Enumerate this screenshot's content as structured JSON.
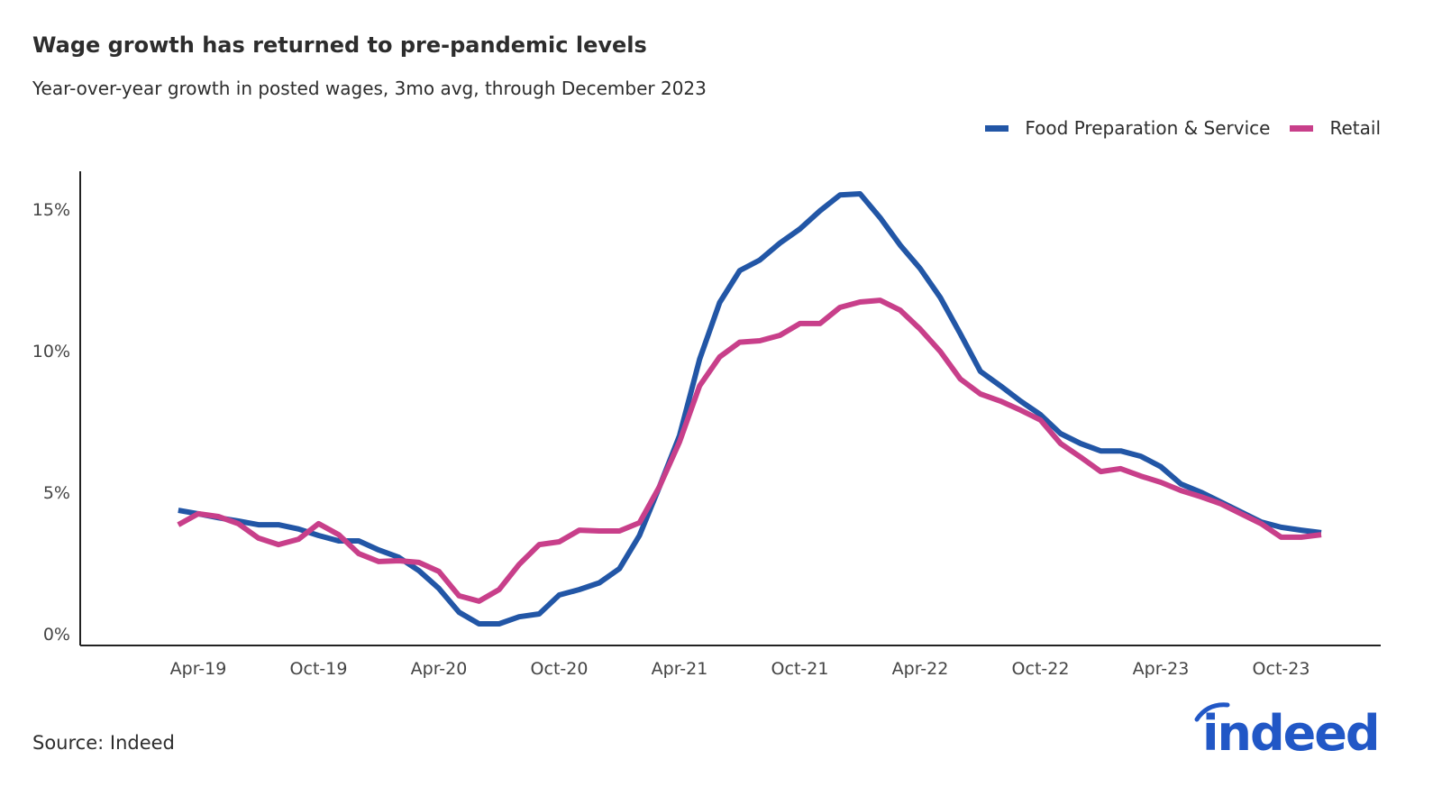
{
  "title": "Wage growth has returned to pre-pandemic levels",
  "subtitle": "Year-over-year growth in posted wages, 3mo avg, through December 2023",
  "source": "Source: Indeed",
  "logo_text": "indeed",
  "colors": {
    "food": "#2256a6",
    "retail": "#c83f8a",
    "logo": "#2157c6"
  },
  "chart_data": {
    "type": "line",
    "title": "Wage growth has returned to pre-pandemic levels",
    "subtitle": "Year-over-year growth in posted wages, 3mo avg, through December 2023",
    "xlabel": "",
    "ylabel": "",
    "ylim": [
      -0.4,
      16.5
    ],
    "y_ticks": [
      0,
      5,
      10,
      15
    ],
    "y_tick_labels": [
      "0%",
      "5%",
      "10%",
      "15%"
    ],
    "x_tick_labels": [
      "Apr-19",
      "Oct-19",
      "Apr-20",
      "Oct-20",
      "Apr-21",
      "Oct-21",
      "Apr-22",
      "Oct-22",
      "Apr-23",
      "Oct-23"
    ],
    "x_tick_positions": [
      "2019-04",
      "2019-10",
      "2020-04",
      "2020-10",
      "2021-04",
      "2021-10",
      "2022-04",
      "2022-10",
      "2023-04",
      "2023-10"
    ],
    "x_range": [
      "2018-11",
      "2024-05"
    ],
    "grid": false,
    "legend_position": "top-right",
    "x": [
      "2019-03",
      "2019-04",
      "2019-05",
      "2019-06",
      "2019-07",
      "2019-08",
      "2019-09",
      "2019-10",
      "2019-11",
      "2019-12",
      "2020-01",
      "2020-02",
      "2020-03",
      "2020-04",
      "2020-05",
      "2020-06",
      "2020-07",
      "2020-08",
      "2020-09",
      "2020-10",
      "2020-11",
      "2020-12",
      "2021-01",
      "2021-02",
      "2021-03",
      "2021-04",
      "2021-05",
      "2021-06",
      "2021-07",
      "2021-08",
      "2021-09",
      "2021-10",
      "2021-11",
      "2021-12",
      "2022-01",
      "2022-02",
      "2022-03",
      "2022-04",
      "2022-05",
      "2022-06",
      "2022-07",
      "2022-08",
      "2022-09",
      "2022-10",
      "2022-11",
      "2022-12",
      "2023-01",
      "2023-02",
      "2023-03",
      "2023-04",
      "2023-05",
      "2023-06",
      "2023-07",
      "2023-08",
      "2023-09",
      "2023-10",
      "2023-11",
      "2023-12"
    ],
    "series": [
      {
        "name": "Food Preparation & Service",
        "color": "#2256a6",
        "values": [
          4.36,
          4.24,
          4.1,
          3.98,
          3.85,
          3.85,
          3.7,
          3.47,
          3.28,
          3.28,
          2.96,
          2.7,
          2.23,
          1.6,
          0.76,
          0.35,
          0.35,
          0.6,
          0.7,
          1.37,
          1.56,
          1.8,
          2.3,
          3.47,
          5.2,
          7.0,
          9.7,
          11.7,
          12.83,
          13.2,
          13.8,
          14.3,
          14.94,
          15.5,
          15.54,
          14.7,
          13.73,
          12.9,
          11.88,
          10.6,
          9.27,
          8.76,
          8.22,
          7.74,
          7.07,
          6.72,
          6.46,
          6.46,
          6.27,
          5.9,
          5.29,
          5.0,
          4.65,
          4.3,
          3.95,
          3.76,
          3.66,
          3.57
        ]
      },
      {
        "name": "Retail",
        "color": "#c83f8a",
        "values": [
          3.85,
          4.24,
          4.14,
          3.89,
          3.38,
          3.15,
          3.34,
          3.89,
          3.5,
          2.83,
          2.55,
          2.58,
          2.52,
          2.2,
          1.34,
          1.15,
          1.56,
          2.45,
          3.15,
          3.25,
          3.66,
          3.63,
          3.63,
          3.92,
          5.2,
          6.78,
          8.76,
          9.78,
          10.3,
          10.35,
          10.54,
          10.96,
          10.96,
          11.53,
          11.72,
          11.78,
          11.43,
          10.76,
          9.97,
          9.0,
          8.47,
          8.22,
          7.9,
          7.55,
          6.72,
          6.24,
          5.73,
          5.83,
          5.57,
          5.35,
          5.06,
          4.84,
          4.59,
          4.24,
          3.89,
          3.41,
          3.41,
          3.5
        ]
      }
    ]
  }
}
